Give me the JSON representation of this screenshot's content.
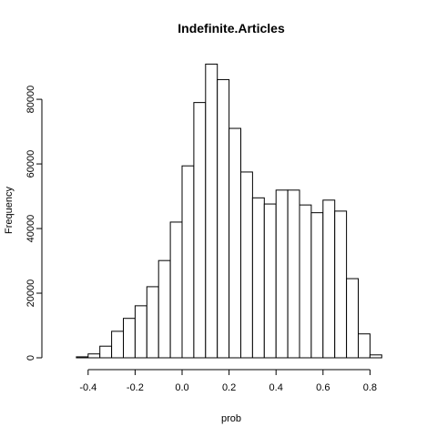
{
  "chart_data": {
    "type": "bar",
    "title": "Indefinite.Articles",
    "xlabel": "prob",
    "ylabel": "Frequency",
    "bin_width": 0.05,
    "bins": [
      {
        "start": -0.45,
        "end": -0.4,
        "value": 300
      },
      {
        "start": -0.4,
        "end": -0.35,
        "value": 1200
      },
      {
        "start": -0.35,
        "end": -0.3,
        "value": 3600
      },
      {
        "start": -0.3,
        "end": -0.25,
        "value": 8200
      },
      {
        "start": -0.25,
        "end": -0.2,
        "value": 12200
      },
      {
        "start": -0.2,
        "end": -0.15,
        "value": 16100
      },
      {
        "start": -0.15,
        "end": -0.1,
        "value": 22000
      },
      {
        "start": -0.1,
        "end": -0.05,
        "value": 30100
      },
      {
        "start": -0.05,
        "end": 0.0,
        "value": 42000
      },
      {
        "start": 0.0,
        "end": 0.05,
        "value": 59400
      },
      {
        "start": 0.05,
        "end": 0.1,
        "value": 79000
      },
      {
        "start": 0.1,
        "end": 0.15,
        "value": 90900
      },
      {
        "start": 0.15,
        "end": 0.2,
        "value": 86100
      },
      {
        "start": 0.2,
        "end": 0.25,
        "value": 71000
      },
      {
        "start": 0.25,
        "end": 0.3,
        "value": 57500
      },
      {
        "start": 0.3,
        "end": 0.35,
        "value": 49500
      },
      {
        "start": 0.35,
        "end": 0.4,
        "value": 47600
      },
      {
        "start": 0.4,
        "end": 0.45,
        "value": 51900
      },
      {
        "start": 0.45,
        "end": 0.5,
        "value": 51900
      },
      {
        "start": 0.5,
        "end": 0.55,
        "value": 47300
      },
      {
        "start": 0.55,
        "end": 0.6,
        "value": 44900
      },
      {
        "start": 0.6,
        "end": 0.65,
        "value": 48800
      },
      {
        "start": 0.65,
        "end": 0.7,
        "value": 45400
      },
      {
        "start": 0.7,
        "end": 0.75,
        "value": 24500
      },
      {
        "start": 0.75,
        "end": 0.8,
        "value": 7400
      },
      {
        "start": 0.8,
        "end": 0.85,
        "value": 900
      }
    ],
    "xlim": [
      -0.5,
      0.9
    ],
    "ylim": [
      0,
      95000
    ],
    "x_ticks": [
      -0.4,
      -0.2,
      0.0,
      0.2,
      0.4,
      0.6,
      0.8
    ],
    "x_tick_labels": [
      "-0.4",
      "-0.2",
      "0.0",
      "0.2",
      "0.4",
      "0.6",
      "0.8"
    ],
    "y_ticks": [
      0,
      20000,
      40000,
      60000,
      80000
    ],
    "y_tick_labels": [
      "0",
      "20000",
      "40000",
      "60000",
      "80000"
    ],
    "grid": false
  }
}
